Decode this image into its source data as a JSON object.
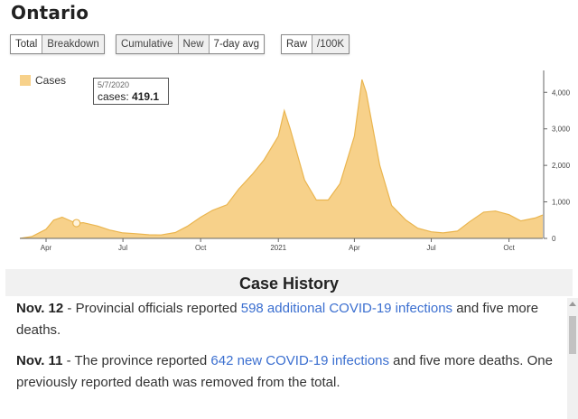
{
  "title": "Ontario",
  "toolbar": {
    "group1": [
      "Total",
      "Breakdown"
    ],
    "group2": [
      "Cumulative",
      "New",
      "7-day avg"
    ],
    "group3": [
      "Raw",
      "/100K"
    ]
  },
  "tooltip": {
    "date": "5/7/2020",
    "label": "cases:",
    "value": "419.1"
  },
  "chart_data": {
    "type": "area",
    "series": [
      {
        "name": "Cases",
        "color": "#f7d18a"
      }
    ],
    "x_tick_labels": [
      "Apr",
      "Jul",
      "Oct",
      "2021",
      "Apr",
      "Jul",
      "Oct"
    ],
    "y_tick_labels": [
      "0",
      "1,000",
      "2,000",
      "3,000",
      "4,000"
    ],
    "ylim": [
      0,
      4600
    ],
    "x": [
      "2020-03-01",
      "2020-03-15",
      "2020-04-01",
      "2020-04-10",
      "2020-04-20",
      "2020-05-01",
      "2020-05-07",
      "2020-05-15",
      "2020-06-01",
      "2020-06-15",
      "2020-07-01",
      "2020-07-15",
      "2020-08-01",
      "2020-08-15",
      "2020-09-01",
      "2020-09-15",
      "2020-10-01",
      "2020-10-15",
      "2020-11-01",
      "2020-11-15",
      "2020-12-01",
      "2020-12-15",
      "2021-01-01",
      "2021-01-08",
      "2021-01-15",
      "2021-02-01",
      "2021-02-15",
      "2021-03-01",
      "2021-03-15",
      "2021-04-01",
      "2021-04-10",
      "2021-04-15",
      "2021-05-01",
      "2021-05-15",
      "2021-06-01",
      "2021-06-15",
      "2021-07-01",
      "2021-07-15",
      "2021-08-01",
      "2021-08-15",
      "2021-09-01",
      "2021-09-15",
      "2021-10-01",
      "2021-10-15",
      "2021-11-01",
      "2021-11-10"
    ],
    "values": [
      0,
      50,
      250,
      500,
      580,
      470,
      419,
      430,
      340,
      230,
      150,
      130,
      100,
      95,
      160,
      330,
      580,
      770,
      920,
      1350,
      1750,
      2150,
      2800,
      3500,
      3000,
      1600,
      1050,
      1050,
      1500,
      2800,
      4350,
      4000,
      2000,
      900,
      500,
      280,
      180,
      150,
      200,
      450,
      720,
      750,
      650,
      480,
      560,
      640
    ],
    "highlight": {
      "x": "2020-05-07",
      "y": 419.1
    }
  },
  "history": {
    "heading": "Case History",
    "entries": [
      {
        "date": "Nov. 12",
        "pre": " - Provincial officials reported ",
        "link": "598 additional COVID-19 infections",
        "post": " and five more deaths."
      },
      {
        "date": "Nov. 11",
        "pre": " - The province reported ",
        "link": "642 new COVID-19 infections",
        "post": " and five more deaths. One previously reported death was removed from the total."
      }
    ]
  }
}
